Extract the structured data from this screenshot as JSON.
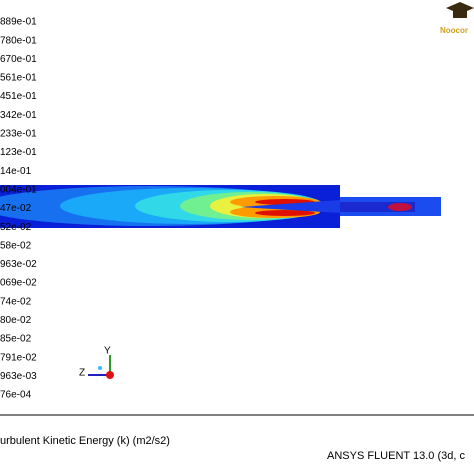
{
  "legend": {
    "labels": [
      "889e-01",
      "780e-01",
      "670e-01",
      "561e-01",
      "451e-01",
      "342e-01",
      "233e-01",
      "123e-01",
      "14e-01",
      "004e-01",
      "47e-02",
      "52e-02",
      "58e-02",
      "963e-02",
      "069e-02",
      "74e-02",
      "80e-02",
      "85e-02",
      "791e-02",
      "963e-03",
      "76e-04"
    ]
  },
  "axes": {
    "y": "Y",
    "z": "Z"
  },
  "logo": "Noocor",
  "footer": {
    "quantity": "urbulent Kinetic Energy (k) (m2/s2)",
    "software": "ANSYS FLUENT 13.0 (3d, c"
  }
}
